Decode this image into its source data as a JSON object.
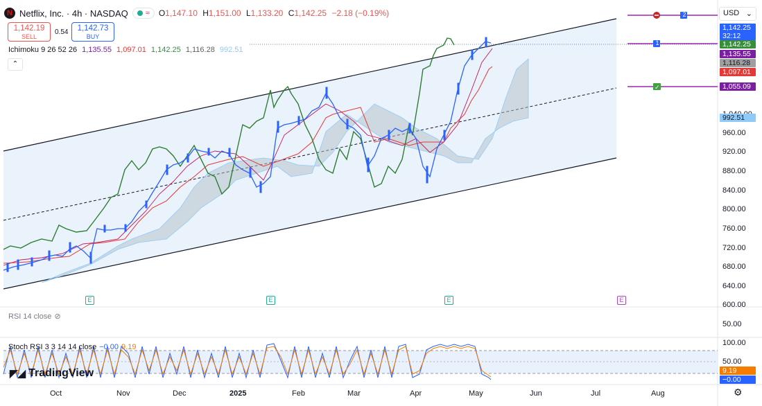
{
  "header": {
    "symbol": "Netflix, Inc. · 4h · NASDAQ",
    "logo_letter": "N",
    "badge_icon": "≈",
    "ohlc": [
      {
        "k": "O",
        "v": "1,147.10"
      },
      {
        "k": "H",
        "v": "1,151.00"
      },
      {
        "k": "L",
        "v": "1,133.20"
      },
      {
        "k": "C",
        "v": "1,142.25"
      }
    ],
    "change": "−2.18 (−0.19%)"
  },
  "trade": {
    "sell_price": "1,142.19",
    "sell_label": "SELL",
    "spread": "0.54",
    "buy_price": "1,142.73",
    "buy_label": "BUY"
  },
  "indicator": {
    "name": "Ichimoku 9 26 52 26",
    "values": [
      "1,135.55",
      "1,097.01",
      "1,142.25",
      "1,116.28",
      "992.51"
    ],
    "colors": [
      "#7b1fa2",
      "#e53935",
      "#388e3c",
      "#616161",
      "#90caf9"
    ]
  },
  "currency": "USD",
  "y_axis": [
    "1,040.00",
    "1,000.00",
    "960.00",
    "920.00",
    "880.00",
    "840.00",
    "800.00",
    "760.00",
    "720.00",
    "680.00",
    "640.00",
    "600.00"
  ],
  "price_labels": [
    {
      "text": "1,142.25",
      "sub": "32:12",
      "color": "#2962ff"
    },
    {
      "text": "1,142.25",
      "color": "#388e3c"
    },
    {
      "text": "1,135.55",
      "color": "#7b1fa2"
    },
    {
      "text": "1,116.28",
      "color": "#9e9e9e"
    },
    {
      "text": "1,097.01",
      "color": "#e53935"
    },
    {
      "text": "1,055.09",
      "color": "#7b1fa2"
    },
    {
      "text": "992.51",
      "color": "#90caf9",
      "fg": "#131722"
    }
  ],
  "alerts": [
    "2",
    "1"
  ],
  "rsi": {
    "label": "RSI 14 close",
    "level": "50.00"
  },
  "stoch": {
    "label": "Stoch RSI 3 3 14 14 close",
    "k": "−0.00",
    "d": "9.19",
    "levels": [
      "100.00",
      "50.00"
    ],
    "d_value": "9.19",
    "k_value": "−0.00"
  },
  "x_axis": [
    "Oct",
    "Nov",
    "Dec",
    "2025",
    "Feb",
    "Mar",
    "Apr",
    "May",
    "Jun",
    "Jul",
    "Aug"
  ],
  "brand": "TradingView",
  "earnings_marker": "E"
}
